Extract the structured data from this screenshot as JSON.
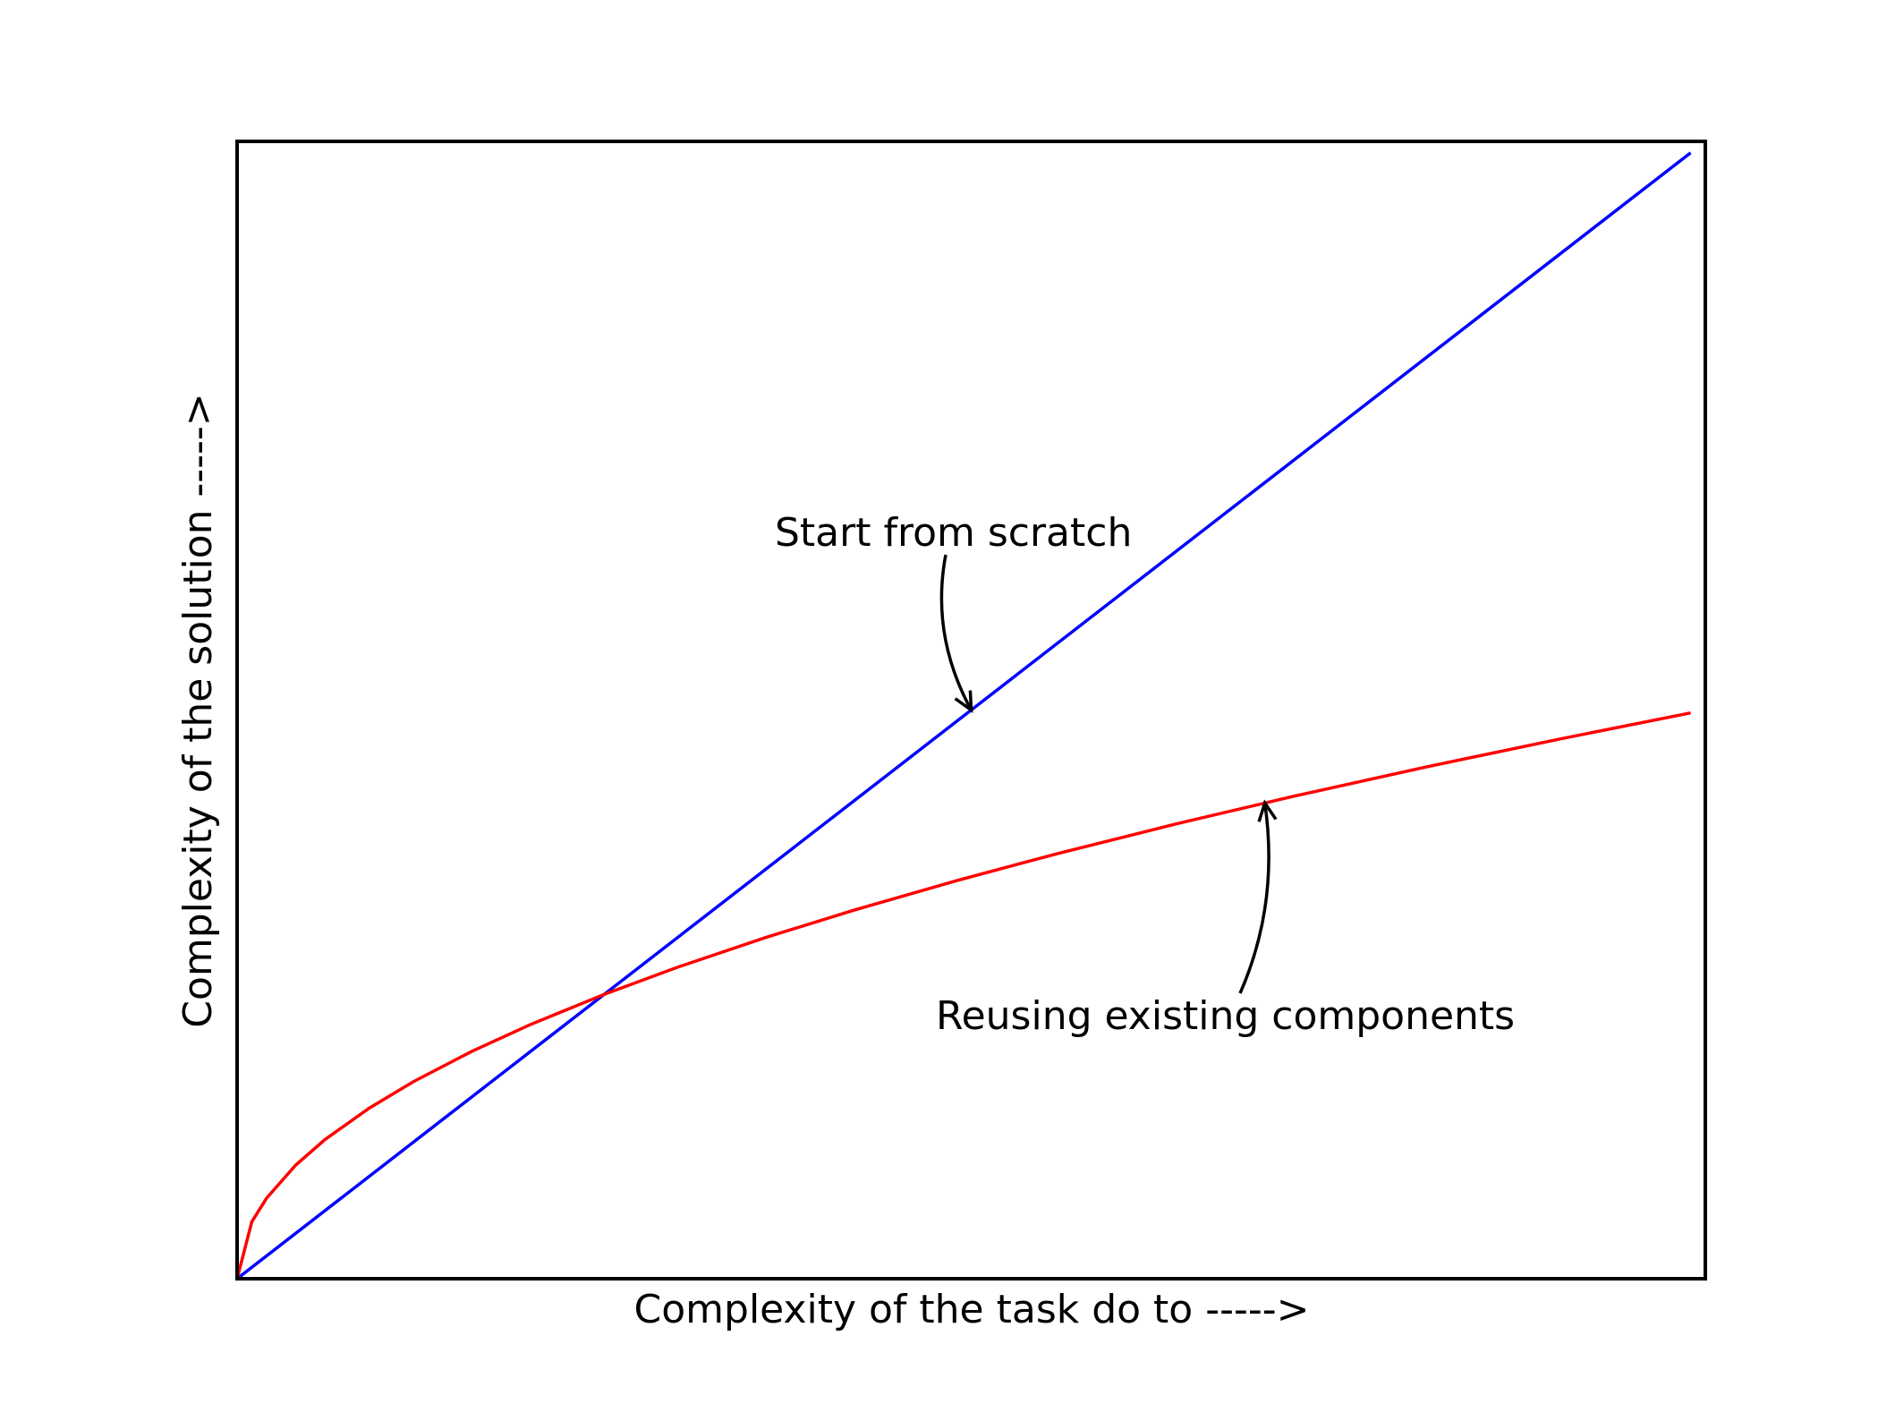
{
  "chart_data": {
    "type": "line",
    "title": "",
    "xlabel": "Complexity of the task do to ----->",
    "ylabel": "Complexity of the solution ----->",
    "xlim": [
      0,
      100
    ],
    "ylim": [
      0,
      100
    ],
    "grid": false,
    "ticks_visible": false,
    "series": [
      {
        "color": "#0000ff",
        "x": [
          0,
          99
        ],
        "y": [
          0,
          99
        ]
      },
      {
        "color": "#ff0000",
        "x": [
          0,
          1,
          2,
          4,
          6,
          9,
          12,
          16,
          20,
          25,
          30,
          36,
          42,
          49,
          56,
          64,
          72,
          81,
          90,
          99
        ],
        "y": [
          0,
          5,
          7.07,
          10,
          12.25,
          15,
          17.32,
          20,
          22.36,
          25,
          27.39,
          30,
          32.4,
          35,
          37.42,
          40,
          42.43,
          45,
          47.43,
          49.75
        ]
      }
    ],
    "annotations": [
      {
        "text": "Start from scratch",
        "target": [
          50,
          50
        ]
      },
      {
        "text": "Reusing existing components",
        "target": [
          70,
          41.83
        ]
      }
    ]
  }
}
